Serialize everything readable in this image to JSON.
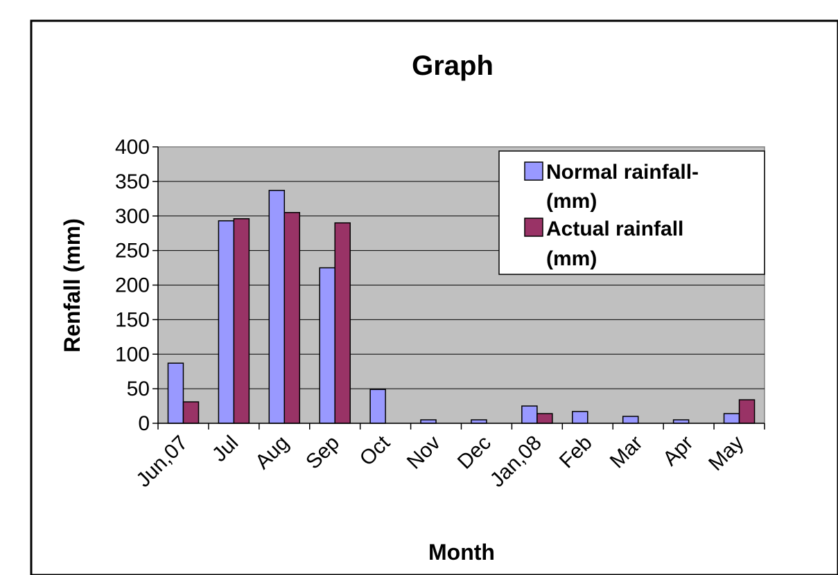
{
  "chart_data": {
    "type": "bar",
    "title": "Graph",
    "xlabel": "Month",
    "ylabel": "Renfall (mm)",
    "ylim": [
      0,
      400
    ],
    "yticks": [
      0,
      50,
      100,
      150,
      200,
      250,
      300,
      350,
      400
    ],
    "grid": true,
    "legend_position": "top-right",
    "categories": [
      "Jun,07",
      "Jul",
      "Aug",
      "Sep",
      "Oct",
      "Nov",
      "Dec",
      "Jan,08",
      "Feb",
      "Mar",
      "Apr",
      "May"
    ],
    "series": [
      {
        "name": "Normal rainfall-(mm)",
        "legend_lines": [
          "Normal rainfall-",
          "(mm)"
        ],
        "color": "#9999ff",
        "values": [
          87,
          293,
          337,
          225,
          49,
          5,
          5,
          25,
          17,
          10,
          5,
          14
        ]
      },
      {
        "name": "Actual rainfall (mm)",
        "legend_lines": [
          "Actual rainfall",
          "(mm)"
        ],
        "color": "#993366",
        "values": [
          31,
          296,
          305,
          290,
          0,
          0,
          0,
          14,
          0,
          0,
          0,
          34
        ]
      }
    ],
    "plot_background": "#c0c0c0"
  }
}
